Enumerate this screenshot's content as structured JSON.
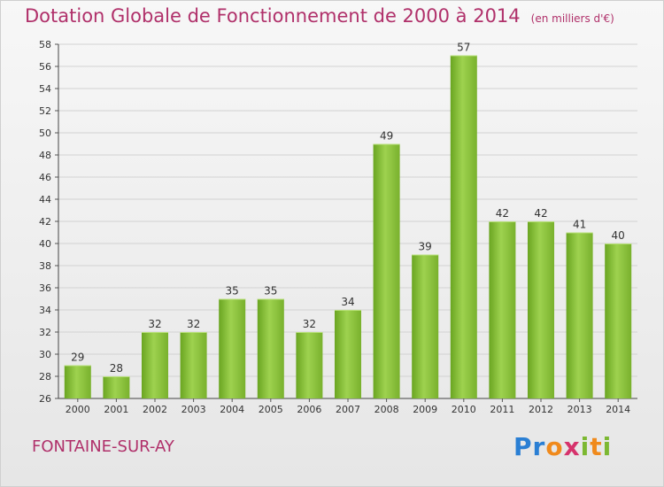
{
  "chart_data": {
    "type": "bar",
    "title": "Dotation Globale de Fonctionnement de 2000 à 2014",
    "subtitle": "(en milliers d'€)",
    "categories": [
      "2000",
      "2001",
      "2002",
      "2003",
      "2004",
      "2005",
      "2006",
      "2007",
      "2008",
      "2009",
      "2010",
      "2011",
      "2012",
      "2013",
      "2014"
    ],
    "values": [
      29,
      28,
      32,
      32,
      35,
      35,
      32,
      34,
      49,
      39,
      57,
      42,
      42,
      41,
      40
    ],
    "ylim": [
      26,
      58
    ],
    "yticks": [
      26,
      28,
      30,
      32,
      34,
      36,
      38,
      40,
      42,
      44,
      46,
      48,
      50,
      52,
      54,
      56,
      58
    ],
    "grid": true,
    "bar_color": "#8cc63f"
  },
  "footer": {
    "commune": "FONTAINE-SUR-AY",
    "logo_letters": [
      {
        "ch": "P",
        "color": "#2a7fd4"
      },
      {
        "ch": "r",
        "color": "#2a7fd4"
      },
      {
        "ch": "o",
        "color": "#f08a1c"
      },
      {
        "ch": "x",
        "color": "#d6336c"
      },
      {
        "ch": "i",
        "color": "#7cb832"
      },
      {
        "ch": "t",
        "color": "#f08a1c"
      },
      {
        "ch": "i",
        "color": "#7cb832"
      }
    ]
  }
}
